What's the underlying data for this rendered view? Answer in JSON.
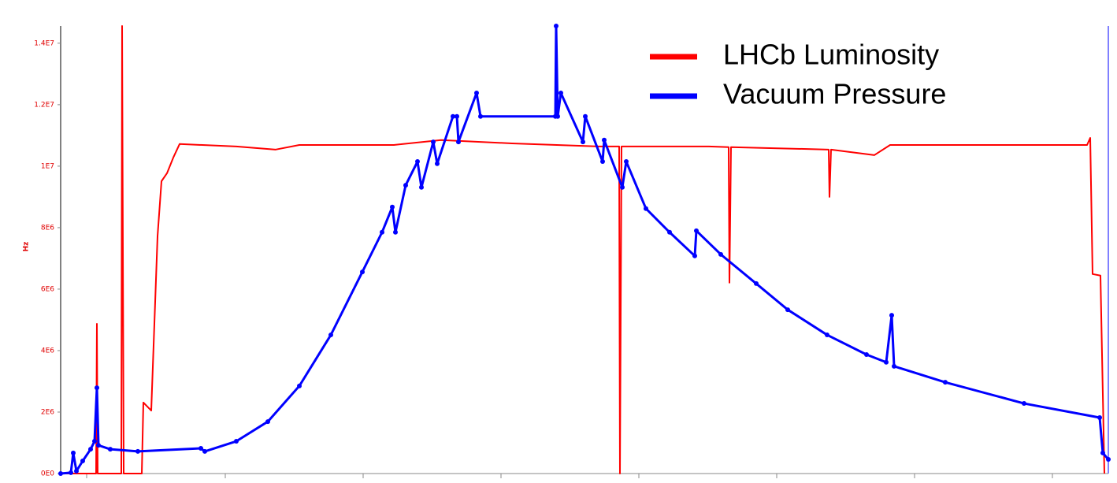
{
  "chart_data": {
    "type": "line",
    "y_label": "Hz",
    "xlim": [
      0,
      1330
    ],
    "xticks": [
      33,
      209,
      384,
      559,
      734,
      909,
      1084,
      1259
    ],
    "ylim": [
      0,
      14560000
    ],
    "yticks": [
      {
        "value": 0,
        "label": "0E0"
      },
      {
        "value": 2000000,
        "label": "2E6"
      },
      {
        "value": 4000000,
        "label": "4E6"
      },
      {
        "value": 6000000,
        "label": "6E6"
      },
      {
        "value": 8000000,
        "label": "8E6"
      },
      {
        "value": 10000000,
        "label": "1E7"
      },
      {
        "value": 12000000,
        "label": "1.2E7"
      },
      {
        "value": 14000000,
        "label": "1.4E7"
      }
    ],
    "legend": "upper right",
    "series": [
      {
        "name": "LHCb Luminosity",
        "color": "#ff0000",
        "markers": false,
        "x": [
          0,
          33,
          45,
          46,
          47,
          77,
          78,
          80,
          103,
          105,
          115,
          123,
          128,
          135,
          143,
          151,
          223,
          273,
          303,
          423,
          483,
          573,
          683,
          709,
          710,
          712,
          823,
          848,
          849,
          851,
          975,
          976,
          978,
          1033,
          1053,
          1303,
          1307,
          1310,
          1320,
          1325
        ],
        "values": [
          0,
          0,
          0,
          4870000,
          0,
          0,
          14560000,
          0,
          0,
          2310000,
          2050000,
          7720000,
          9510000,
          9770000,
          10280000,
          10720000,
          10640000,
          10540000,
          10690000,
          10690000,
          10850000,
          10740000,
          10640000,
          10640000,
          0,
          10640000,
          10640000,
          10620000,
          6210000,
          10620000,
          10540000,
          9000000,
          10540000,
          10360000,
          10690000,
          10690000,
          10920000,
          6490000,
          6440000,
          0
        ]
      },
      {
        "name": "Vacuum Pressure",
        "color": "#0000ff",
        "markers": true,
        "x": [
          0,
          13,
          16,
          20,
          28,
          38,
          43,
          46,
          48,
          63,
          98,
          178,
          183,
          223,
          263,
          303,
          343,
          383,
          408,
          421,
          425,
          438,
          453,
          458,
          473,
          478,
          498,
          503,
          505,
          528,
          533,
          628,
          629,
          631,
          635,
          663,
          666,
          688,
          690,
          713,
          718,
          743,
          773,
          805,
          807,
          838,
          883,
          923,
          973,
          1023,
          1048,
          1055,
          1058,
          1123,
          1223,
          1319,
          1323,
          1330
        ],
        "values": [
          0,
          30000,
          670000,
          80000,
          410000,
          790000,
          1050000,
          2790000,
          920000,
          790000,
          720000,
          820000,
          720000,
          1050000,
          1690000,
          2850000,
          4510000,
          6560000,
          7850000,
          8670000,
          7850000,
          9380000,
          10150000,
          9310000,
          10790000,
          10080000,
          11620000,
          11620000,
          10790000,
          12380000,
          11620000,
          11620000,
          14560000,
          11620000,
          12380000,
          10790000,
          11620000,
          10150000,
          10850000,
          9310000,
          10150000,
          8620000,
          7850000,
          7080000,
          7900000,
          7130000,
          6180000,
          5330000,
          4510000,
          3870000,
          3620000,
          5150000,
          3490000,
          2970000,
          2280000,
          1820000,
          670000,
          460000
        ]
      }
    ]
  }
}
